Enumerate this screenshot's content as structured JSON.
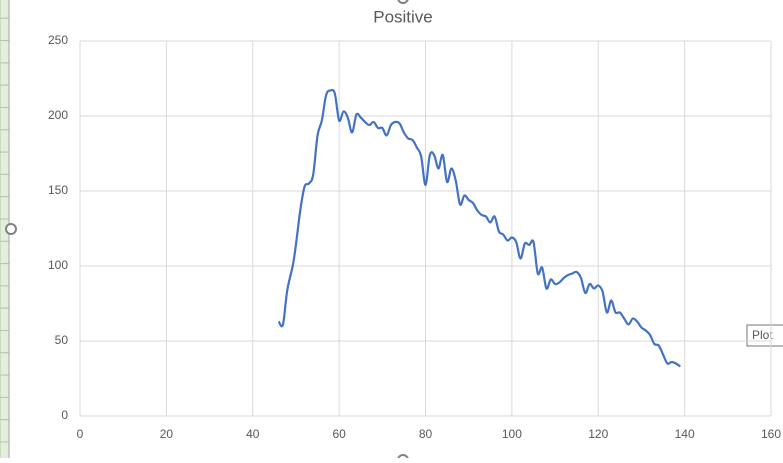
{
  "chart_data": {
    "type": "line",
    "title": "Positive",
    "x": [
      46,
      47,
      48,
      49.5,
      51,
      52,
      53,
      54,
      55,
      56,
      57,
      58,
      59,
      60,
      61,
      62,
      63,
      64,
      65,
      66,
      67,
      68,
      69,
      70,
      71,
      72,
      73,
      74,
      75,
      76,
      77,
      78,
      79,
      80,
      81,
      82,
      83,
      84,
      85,
      86,
      87,
      88,
      89,
      90,
      91,
      92,
      93,
      94,
      95,
      96,
      97,
      98,
      99,
      100,
      101,
      102,
      103,
      104,
      105,
      106,
      107,
      108,
      109,
      110,
      111,
      112,
      113,
      114,
      115,
      116,
      117,
      118,
      119,
      120,
      121,
      122,
      123,
      124,
      125,
      126,
      127,
      128,
      129,
      130,
      131,
      132,
      133,
      134,
      135,
      136,
      137,
      138,
      139
    ],
    "series": [
      {
        "name": "Positive",
        "color": "#4472c4",
        "values": [
          63,
          61,
          84,
          104,
          137,
          153,
          155,
          161,
          187,
          197,
          214,
          217,
          215,
          197,
          203,
          199,
          189,
          201,
          199,
          196,
          194,
          196,
          192,
          192,
          187,
          194,
          196,
          195,
          189,
          185,
          184,
          179,
          173,
          154,
          174,
          174,
          165,
          174,
          156,
          165,
          157,
          141,
          147,
          144,
          142,
          137,
          134,
          133,
          129,
          133,
          123,
          121,
          117,
          119,
          116,
          105,
          115,
          114,
          116,
          95,
          99,
          85,
          91,
          88,
          89,
          92,
          94,
          95,
          96,
          92,
          82,
          88,
          85,
          87,
          83,
          69,
          77,
          69,
          69,
          65,
          61,
          65,
          63,
          59,
          57,
          54,
          48,
          47,
          41,
          35,
          36,
          35,
          33
        ]
      }
    ],
    "xlim": [
      0,
      160
    ],
    "xticks": [
      0,
      20,
      40,
      60,
      80,
      100,
      120,
      140,
      160
    ],
    "ylim": [
      0,
      250
    ],
    "yticks": [
      0,
      50,
      100,
      150,
      200,
      250
    ],
    "grid": true
  },
  "tooltip": "Plot"
}
